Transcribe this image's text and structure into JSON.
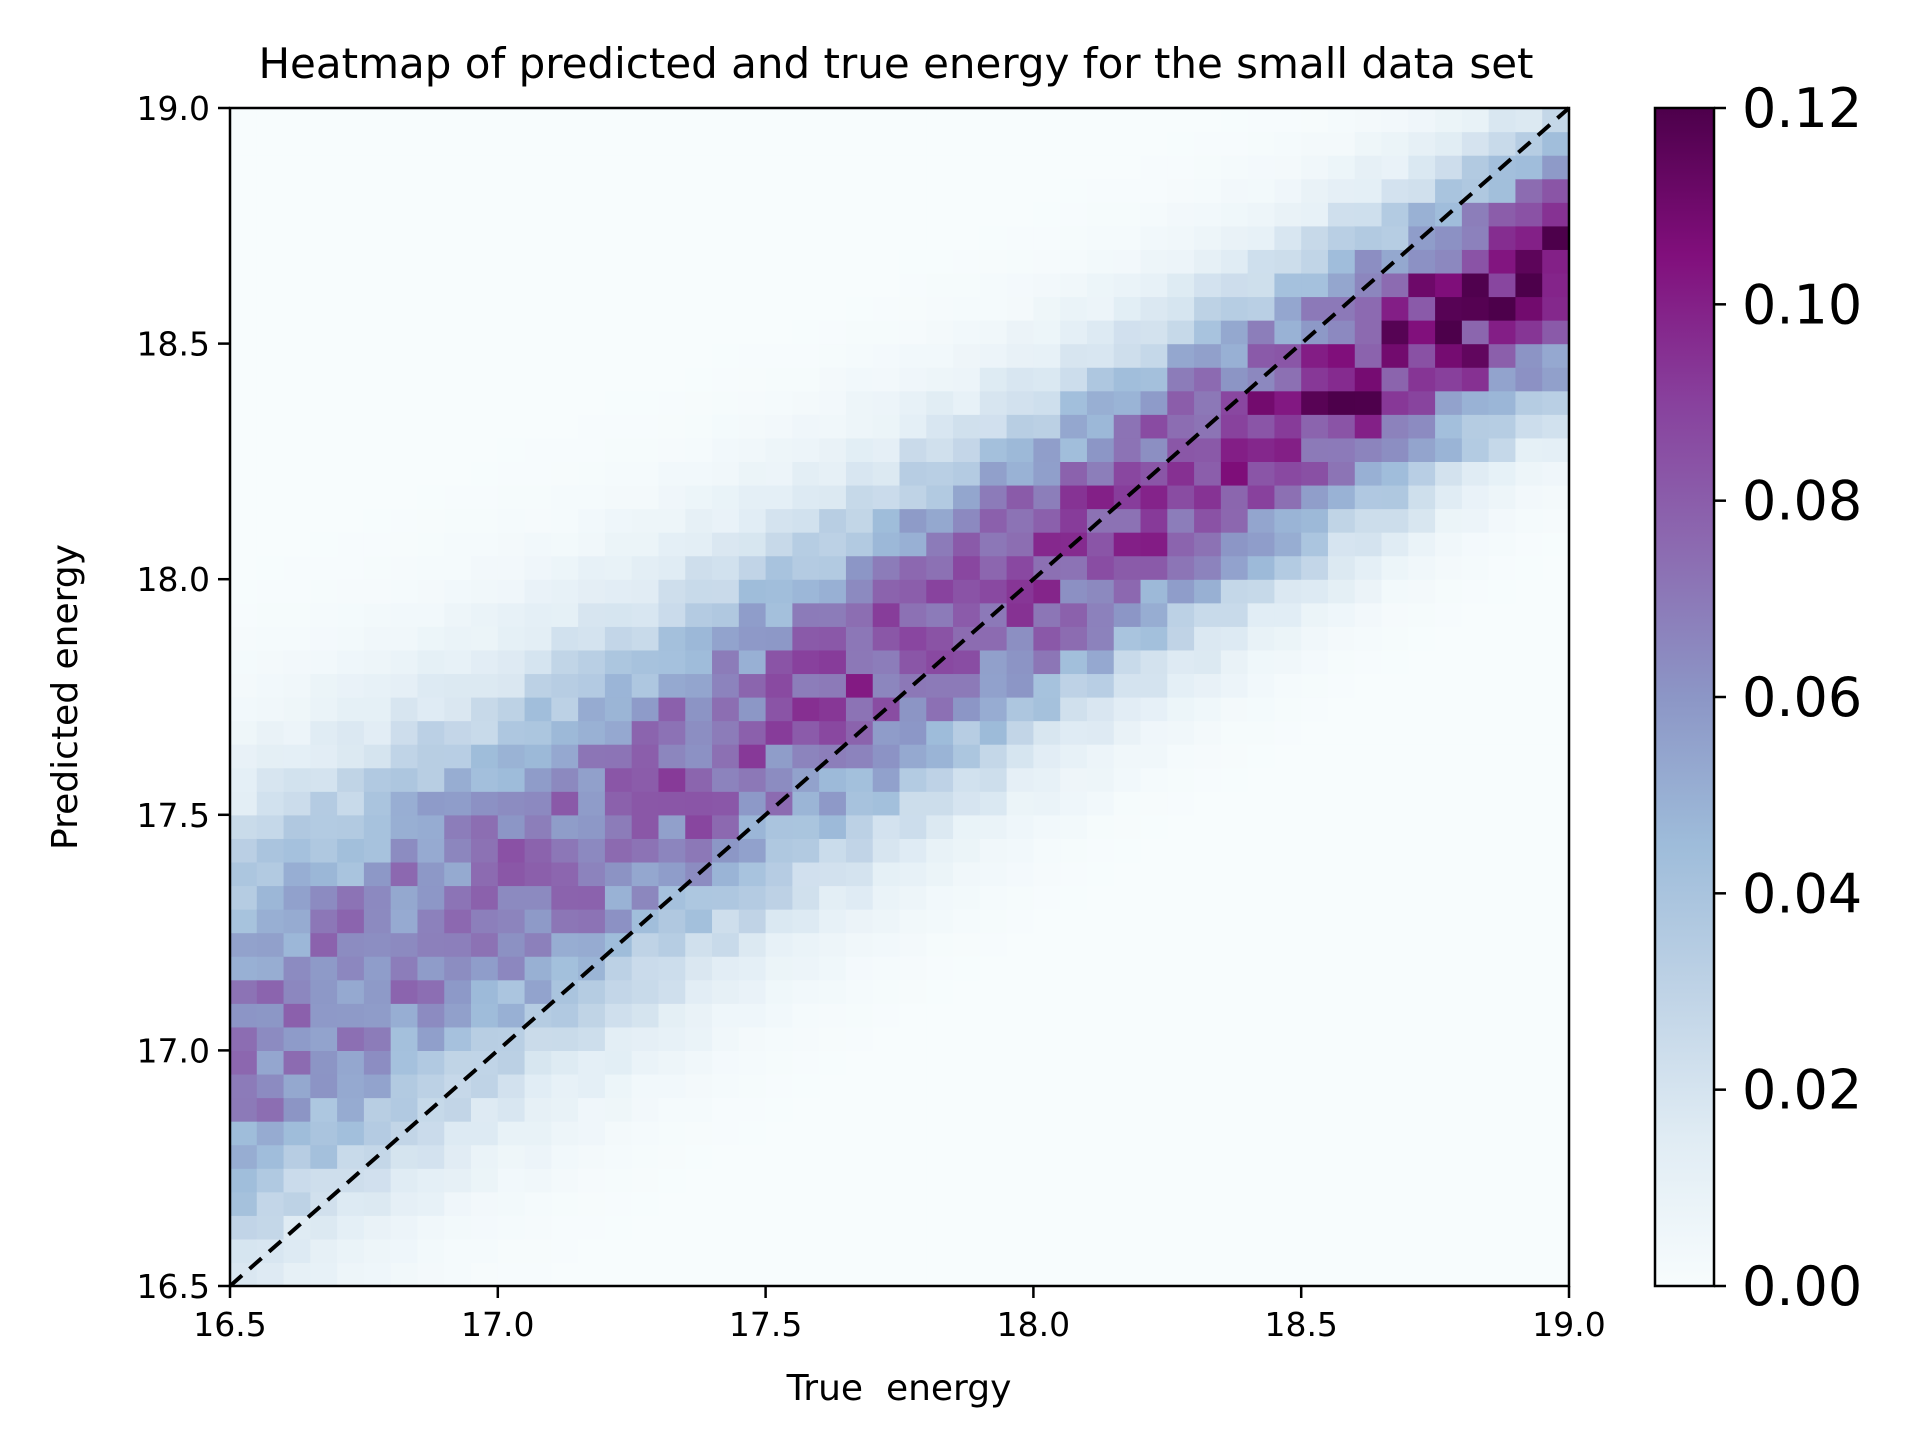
{
  "chart_data": {
    "type": "heatmap",
    "title": "Heatmap of predicted and true energy for the small data set",
    "xlabel": "True  energy",
    "ylabel": "Predicted energy",
    "xlim": [
      16.5,
      19.0
    ],
    "ylim": [
      16.5,
      19.0
    ],
    "bins": 50,
    "x_ticks": [
      "16.5",
      "17.0",
      "17.5",
      "18.0",
      "18.5",
      "19.0"
    ],
    "y_ticks": [
      "16.5",
      "17.0",
      "17.5",
      "18.0",
      "18.5",
      "19.0"
    ],
    "colorbar": {
      "vmin": 0.0,
      "vmax": 0.12,
      "ticks": [
        "0.00",
        "0.02",
        "0.04",
        "0.06",
        "0.08",
        "0.10",
        "0.12"
      ],
      "colormap": "BuPu",
      "colors": [
        "#f7fcfd",
        "#e0ecf4",
        "#bfd3e6",
        "#9ebcda",
        "#8c96c6",
        "#8c6bb1",
        "#88419d",
        "#810f7c",
        "#4d004b"
      ]
    },
    "reference_line": {
      "from": [
        16.5,
        16.5
      ],
      "to": [
        19.0,
        19.0
      ],
      "style": "dashed",
      "color": "#000000"
    },
    "distribution_model": {
      "description": "Column-normalized density of predicted energy given true energy",
      "mean_offset_at_x_min": 0.5,
      "mean_offset_at_x_max": -0.3,
      "sigma_at_x_min": 0.3,
      "sigma_at_x_max": 0.18
    }
  }
}
